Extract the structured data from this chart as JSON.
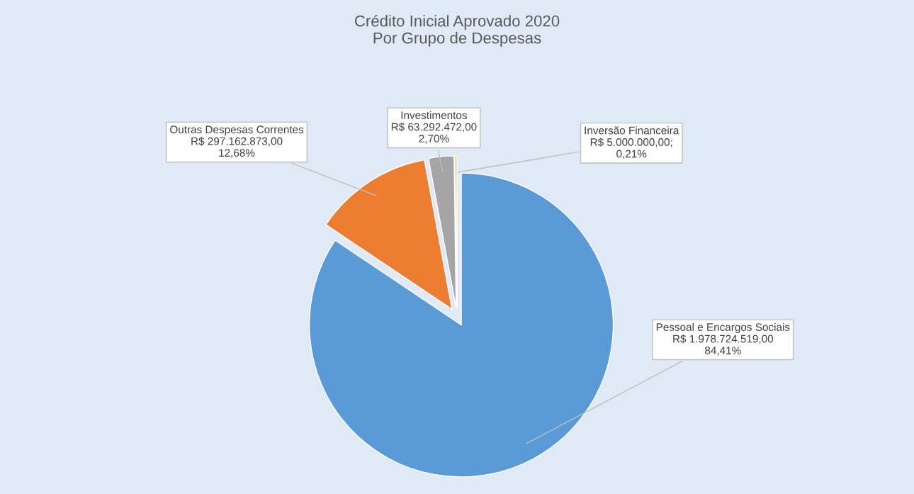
{
  "chart_data": {
    "type": "pie",
    "title": "Crédito Inicial Aprovado 2020\nPor Grupo de Despesas",
    "categories": [
      "Pessoal e Encargos Sociais",
      "Outras Despesas Correntes",
      "Investimentos",
      "Inversão Financeira"
    ],
    "values": [
      1978724519.0,
      297162873.0,
      63292472.0,
      5000000.0
    ],
    "colors": [
      "#5b9bd5",
      "#ed7d31",
      "#a5a5a5",
      "#ffc000"
    ],
    "value_labels": [
      "R$ 1.978.724.519,00\n84,41%",
      "R$ 297.162.873,00\n12,68%",
      "R$ 63.292.472,00\n2,70%",
      "R$ 5.000.000,00;\n0,21%"
    ],
    "legend": false
  }
}
